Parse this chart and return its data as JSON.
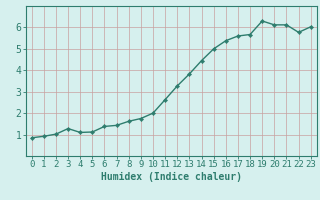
{
  "x": [
    0,
    1,
    2,
    3,
    4,
    5,
    6,
    7,
    8,
    9,
    10,
    11,
    12,
    13,
    14,
    15,
    16,
    17,
    18,
    19,
    20,
    21,
    22,
    23
  ],
  "y": [
    0.85,
    0.92,
    1.02,
    1.28,
    1.1,
    1.12,
    1.38,
    1.43,
    1.62,
    1.75,
    2.0,
    2.63,
    3.27,
    3.83,
    4.45,
    5.0,
    5.38,
    5.6,
    5.67,
    6.3,
    6.12,
    6.12,
    5.77,
    6.03
  ],
  "line_color": "#2e7d6e",
  "marker": "D",
  "marker_size": 2.2,
  "bg_color": "#d6f0ee",
  "grid_color_h": "#c8a0a0",
  "grid_color_v": "#c8a0a0",
  "axis_color": "#2e7d6e",
  "xlabel": "Humidex (Indice chaleur)",
  "xlim": [
    -0.5,
    23.5
  ],
  "ylim": [
    0,
    7
  ],
  "xticks": [
    0,
    1,
    2,
    3,
    4,
    5,
    6,
    7,
    8,
    9,
    10,
    11,
    12,
    13,
    14,
    15,
    16,
    17,
    18,
    19,
    20,
    21,
    22,
    23
  ],
  "yticks": [
    1,
    2,
    3,
    4,
    5,
    6
  ],
  "xlabel_fontsize": 7,
  "tick_fontsize": 6.5,
  "line_width": 1.0
}
